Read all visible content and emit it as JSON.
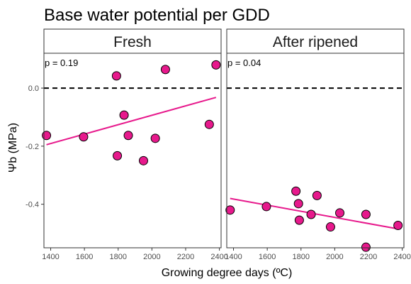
{
  "chart_data": {
    "type": "scatter",
    "title": "Base water potential per GDD",
    "xlabel": "Growing degree days (ºC)",
    "ylabel": "Ψb (MPa)",
    "xlim": [
      1360,
      2410
    ],
    "ylim": [
      -0.55,
      0.12
    ],
    "x_ticks": [
      1400,
      1600,
      1800,
      2000,
      2200,
      2400
    ],
    "y_ticks": [
      0.0,
      -0.2,
      -0.4
    ],
    "y_tick_labels": [
      "0.0",
      "-0.2",
      "-0.4"
    ],
    "reference_line": {
      "y": 0,
      "style": "dashed"
    },
    "point_color": "#e7198c",
    "line_color": "#e7198c",
    "panels": [
      {
        "name": "Fresh",
        "annotation": "p = 0.19",
        "points": [
          {
            "x": 1375,
            "y": -0.163
          },
          {
            "x": 1595,
            "y": -0.168
          },
          {
            "x": 1790,
            "y": 0.042
          },
          {
            "x": 1795,
            "y": -0.233
          },
          {
            "x": 1835,
            "y": -0.093
          },
          {
            "x": 1860,
            "y": -0.163
          },
          {
            "x": 1950,
            "y": -0.25
          },
          {
            "x": 2020,
            "y": -0.173
          },
          {
            "x": 2080,
            "y": 0.064
          },
          {
            "x": 2340,
            "y": -0.125
          },
          {
            "x": 2380,
            "y": 0.08
          }
        ],
        "fit": {
          "x": [
            1375,
            2380
          ],
          "y": [
            -0.195,
            -0.032
          ]
        }
      },
      {
        "name": "After ripened",
        "annotation": "p = 0.04",
        "points": [
          {
            "x": 1380,
            "y": -0.42
          },
          {
            "x": 1595,
            "y": -0.408
          },
          {
            "x": 1770,
            "y": -0.355
          },
          {
            "x": 1785,
            "y": -0.398
          },
          {
            "x": 1790,
            "y": -0.455
          },
          {
            "x": 1860,
            "y": -0.435
          },
          {
            "x": 1895,
            "y": -0.37
          },
          {
            "x": 1975,
            "y": -0.478
          },
          {
            "x": 2030,
            "y": -0.43
          },
          {
            "x": 2185,
            "y": -0.435
          },
          {
            "x": 2185,
            "y": -0.548
          },
          {
            "x": 2375,
            "y": -0.473
          }
        ],
        "fit": {
          "x": [
            1380,
            2375
          ],
          "y": [
            -0.38,
            -0.485
          ]
        }
      }
    ]
  }
}
